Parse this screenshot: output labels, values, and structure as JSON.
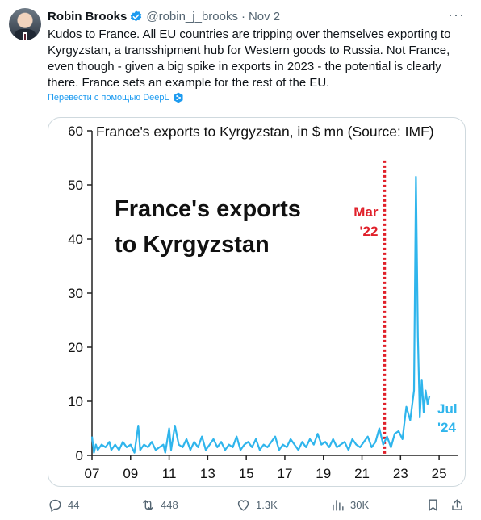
{
  "tweet": {
    "author_name": "Robin Brooks",
    "handle": "@robin_j_brooks",
    "separator": "·",
    "date": "Nov 2",
    "more_icon": "more-horizontal-icon",
    "text": "Kudos to France. All EU countries are tripping over themselves exporting to Kyrgyzstan, a transshipment hub for Western goods to Russia. Not France, even though - given a big spike in exports in 2023 - the potential is clearly there. France sets an example for the rest of the EU.",
    "translate_label": "Перевести с помощью DeepL",
    "accent": "#1d9bf0"
  },
  "actions": {
    "replies": "44",
    "reposts": "448",
    "likes": "1.3K",
    "views": "30K"
  },
  "chart_data": {
    "type": "line",
    "title": "France's exports to Kyrgyzstan, in $ mn (Source: IMF)",
    "overlay_title_line1": "France's exports",
    "overlay_title_line2": "to Kyrgyzstan",
    "ylim": [
      0,
      60
    ],
    "yticks": [
      "0",
      "10",
      "20",
      "30",
      "40",
      "50",
      "60"
    ],
    "xlim": [
      2007,
      2026
    ],
    "xticks": [
      "07",
      "09",
      "11",
      "13",
      "15",
      "17",
      "19",
      "21",
      "23",
      "25"
    ],
    "marker_label_line1": "Mar",
    "marker_label_line2": "'22",
    "marker_x": 2022.17,
    "end_label_line1": "Jul",
    "end_label_line2": "'24",
    "line_color": "#2fb5ec",
    "marker_color": "#e0202a",
    "series": [
      {
        "x": [
          2007.0,
          2007.1,
          2007.2,
          2007.3,
          2007.5,
          2007.7,
          2007.9,
          2008.0,
          2008.2,
          2008.4,
          2008.6,
          2008.8,
          2009.0,
          2009.2,
          2009.4,
          2009.5,
          2009.7,
          2009.9,
          2010.1,
          2010.3,
          2010.5,
          2010.7,
          2010.8,
          2011.0,
          2011.1,
          2011.3,
          2011.5,
          2011.7,
          2011.9,
          2012.1,
          2012.3,
          2012.5,
          2012.7,
          2012.9,
          2013.1,
          2013.3,
          2013.5,
          2013.7,
          2013.9,
          2014.1,
          2014.3,
          2014.5,
          2014.7,
          2014.9,
          2015.1,
          2015.3,
          2015.5,
          2015.7,
          2015.9,
          2016.1,
          2016.3,
          2016.5,
          2016.7,
          2016.9,
          2017.1,
          2017.3,
          2017.5,
          2017.7,
          2017.9,
          2018.1,
          2018.3,
          2018.5,
          2018.7,
          2018.9,
          2019.1,
          2019.3,
          2019.5,
          2019.7,
          2019.9,
          2020.1,
          2020.3,
          2020.5,
          2020.7,
          2020.9,
          2021.1,
          2021.3,
          2021.5,
          2021.7,
          2021.9,
          2022.1,
          2022.3,
          2022.5,
          2022.7,
          2022.9,
          2023.1,
          2023.3,
          2023.5,
          2023.7,
          2023.8,
          2023.9,
          2024.0,
          2024.1,
          2024.2,
          2024.3,
          2024.4,
          2024.5
        ],
        "y": [
          3.5,
          0.5,
          2.0,
          1.0,
          2.0,
          1.5,
          2.5,
          1.0,
          2.0,
          1.0,
          2.5,
          1.5,
          2.0,
          0.5,
          5.5,
          1.0,
          2.0,
          1.5,
          2.5,
          1.0,
          1.5,
          2.0,
          0.5,
          5.0,
          1.0,
          5.5,
          2.0,
          1.5,
          3.0,
          1.0,
          2.5,
          1.5,
          3.5,
          1.0,
          2.0,
          3.0,
          1.5,
          2.5,
          1.0,
          2.0,
          1.5,
          3.5,
          1.0,
          2.0,
          2.5,
          1.5,
          3.0,
          1.0,
          2.0,
          1.5,
          2.5,
          3.5,
          1.0,
          2.0,
          1.5,
          3.0,
          2.0,
          1.0,
          2.5,
          1.5,
          3.0,
          2.0,
          4.0,
          2.0,
          2.5,
          1.5,
          3.0,
          1.5,
          2.0,
          2.5,
          1.0,
          3.0,
          2.0,
          1.5,
          2.5,
          3.5,
          1.5,
          2.5,
          5.0,
          2.0,
          3.5,
          1.5,
          4.0,
          4.5,
          3.0,
          9.0,
          6.5,
          12.0,
          51.5,
          22.0,
          7.0,
          14.0,
          8.0,
          12.0,
          9.5,
          11.0
        ]
      }
    ]
  }
}
